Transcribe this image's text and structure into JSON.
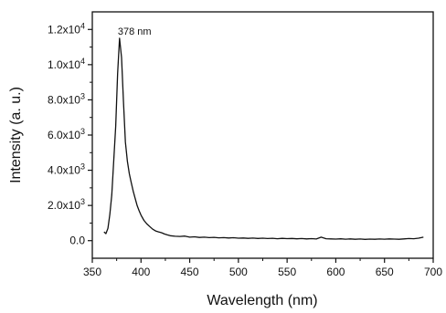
{
  "chart_data": {
    "type": "line",
    "xlabel": "Wavelength (nm)",
    "ylabel": "Intensity (a. u.)",
    "xlim": [
      350,
      700
    ],
    "ylim": [
      -1000,
      13000
    ],
    "x_ticks": [
      350,
      400,
      450,
      500,
      550,
      600,
      650,
      700
    ],
    "x_tick_labels": [
      "350",
      "400",
      "450",
      "500",
      "550",
      "600",
      "650",
      "700"
    ],
    "y_ticks": [
      0,
      2000,
      4000,
      6000,
      8000,
      10000,
      12000
    ],
    "y_tick_labels": [
      {
        "base": "0.0",
        "exp": ""
      },
      {
        "base": "2.0x10",
        "exp": "3"
      },
      {
        "base": "4.0x10",
        "exp": "3"
      },
      {
        "base": "6.0x10",
        "exp": "3"
      },
      {
        "base": "8.0x10",
        "exp": "3"
      },
      {
        "base": "1.0x10",
        "exp": "4"
      },
      {
        "base": "1.2x10",
        "exp": "4"
      }
    ],
    "annotations": [
      {
        "text": "378 nm",
        "x": 378,
        "y": 11500
      }
    ],
    "grid": false,
    "series": [
      {
        "points": [
          [
            362,
            500
          ],
          [
            364,
            400
          ],
          [
            366,
            700
          ],
          [
            368,
            1500
          ],
          [
            370,
            2600
          ],
          [
            372,
            4500
          ],
          [
            374,
            6500
          ],
          [
            376,
            9500
          ],
          [
            378,
            11500
          ],
          [
            380,
            10400
          ],
          [
            382,
            7900
          ],
          [
            384,
            5600
          ],
          [
            386,
            4500
          ],
          [
            388,
            3800
          ],
          [
            390,
            3300
          ],
          [
            392,
            2800
          ],
          [
            394,
            2400
          ],
          [
            396,
            2000
          ],
          [
            398,
            1700
          ],
          [
            400,
            1450
          ],
          [
            403,
            1150
          ],
          [
            406,
            950
          ],
          [
            409,
            800
          ],
          [
            412,
            650
          ],
          [
            415,
            550
          ],
          [
            418,
            500
          ],
          [
            421,
            450
          ],
          [
            424,
            380
          ],
          [
            427,
            330
          ],
          [
            430,
            280
          ],
          [
            435,
            250
          ],
          [
            440,
            240
          ],
          [
            445,
            260
          ],
          [
            450,
            200
          ],
          [
            455,
            220
          ],
          [
            460,
            180
          ],
          [
            465,
            200
          ],
          [
            470,
            170
          ],
          [
            475,
            190
          ],
          [
            480,
            160
          ],
          [
            485,
            170
          ],
          [
            490,
            150
          ],
          [
            495,
            165
          ],
          [
            500,
            140
          ],
          [
            505,
            150
          ],
          [
            510,
            130
          ],
          [
            515,
            145
          ],
          [
            520,
            125
          ],
          [
            525,
            140
          ],
          [
            530,
            120
          ],
          [
            535,
            135
          ],
          [
            540,
            110
          ],
          [
            545,
            130
          ],
          [
            550,
            115
          ],
          [
            555,
            125
          ],
          [
            560,
            105
          ],
          [
            565,
            120
          ],
          [
            570,
            100
          ],
          [
            575,
            115
          ],
          [
            580,
            95
          ],
          [
            585,
            200
          ],
          [
            590,
            110
          ],
          [
            595,
            100
          ],
          [
            600,
            90
          ],
          [
            605,
            105
          ],
          [
            610,
            85
          ],
          [
            615,
            100
          ],
          [
            620,
            80
          ],
          [
            625,
            95
          ],
          [
            630,
            75
          ],
          [
            635,
            90
          ],
          [
            640,
            80
          ],
          [
            645,
            95
          ],
          [
            650,
            85
          ],
          [
            655,
            100
          ],
          [
            660,
            90
          ],
          [
            665,
            80
          ],
          [
            670,
            100
          ],
          [
            675,
            120
          ],
          [
            680,
            110
          ],
          [
            685,
            140
          ],
          [
            690,
            200
          ]
        ]
      }
    ]
  }
}
